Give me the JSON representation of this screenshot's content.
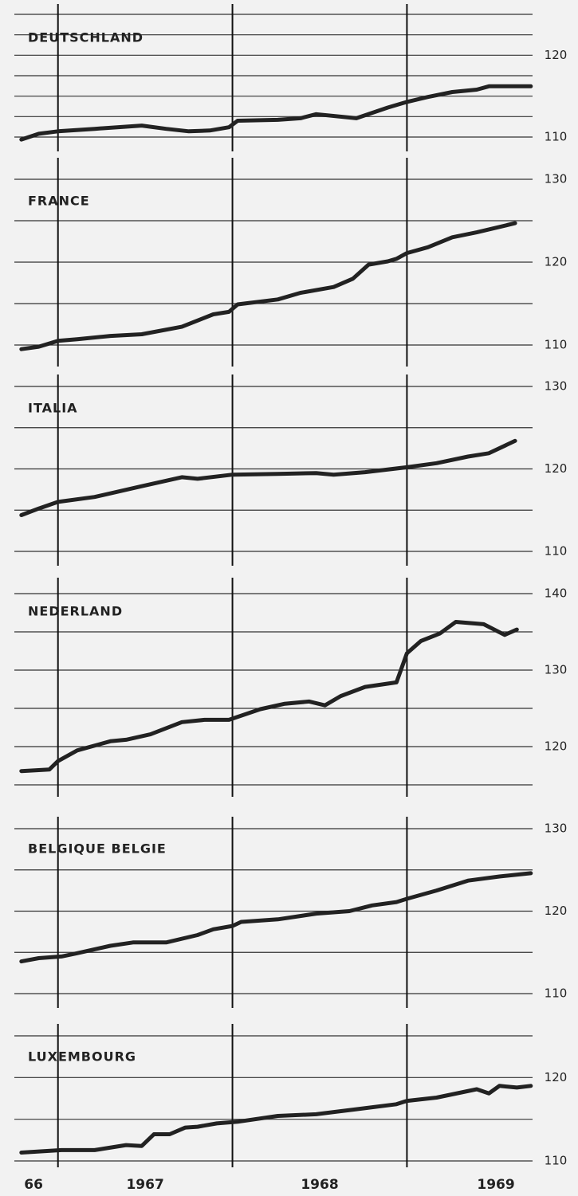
{
  "chart_data": [
    {
      "type": "line",
      "title": "DEUTSCHLAND",
      "color": "#222222",
      "x": [
        1966.79,
        1966.89,
        1967.0,
        1967.21,
        1967.48,
        1967.62,
        1967.75,
        1967.87,
        1967.98,
        1968.03,
        1968.26,
        1968.39,
        1968.48,
        1968.71,
        1968.89,
        1969.0,
        1969.12,
        1969.26,
        1969.4,
        1969.47,
        1969.71
      ],
      "values": [
        109.7,
        110.4,
        110.7,
        111.0,
        111.4,
        111.0,
        110.7,
        110.8,
        111.2,
        112.0,
        112.1,
        112.3,
        112.8,
        112.3,
        113.6,
        114.3,
        114.9,
        115.5,
        115.8,
        116.2,
        116.2
      ],
      "xlim": [
        1966.75,
        1969.72
      ],
      "xticks": [
        1967,
        1968,
        1969
      ],
      "ylim": [
        110,
        125
      ],
      "yticks": [
        110,
        120
      ],
      "ygrid": [
        110,
        112.5,
        115,
        117.5,
        120,
        122.5,
        125
      ]
    },
    {
      "type": "line",
      "title": "FRANCE",
      "color": "#222222",
      "x": [
        1966.79,
        1966.89,
        1967.0,
        1967.11,
        1967.3,
        1967.48,
        1967.71,
        1967.89,
        1967.98,
        1968.03,
        1968.26,
        1968.39,
        1968.58,
        1968.69,
        1968.78,
        1968.89,
        1968.94,
        1969.0,
        1969.12,
        1969.26,
        1969.4,
        1969.62
      ],
      "values": [
        109.5,
        109.8,
        110.5,
        110.7,
        111.1,
        111.3,
        112.2,
        113.7,
        114.0,
        114.9,
        115.5,
        116.3,
        117.0,
        118.0,
        119.7,
        120.1,
        120.4,
        121.1,
        121.8,
        123.0,
        123.6,
        124.7
      ],
      "xlim": [
        1966.75,
        1969.72
      ],
      "xticks": [
        1967,
        1968,
        1969
      ],
      "ylim": [
        110,
        130
      ],
      "yticks": [
        110,
        120,
        130
      ],
      "ygrid": [
        110,
        115,
        120,
        125,
        130
      ]
    },
    {
      "type": "line",
      "title": "ITALIA",
      "color": "#222222",
      "x": [
        1966.79,
        1966.89,
        1967.0,
        1967.21,
        1967.48,
        1967.71,
        1967.8,
        1968.0,
        1968.26,
        1968.48,
        1968.58,
        1968.76,
        1969.0,
        1969.17,
        1969.35,
        1969.47,
        1969.62
      ],
      "values": [
        114.4,
        115.2,
        116.0,
        116.6,
        117.9,
        119.0,
        118.8,
        119.3,
        119.4,
        119.5,
        119.3,
        119.6,
        120.2,
        120.7,
        121.5,
        121.9,
        123.4
      ],
      "xlim": [
        1966.75,
        1969.72
      ],
      "xticks": [
        1967,
        1968,
        1969
      ],
      "ylim": [
        110,
        130
      ],
      "yticks": [
        110,
        120,
        130
      ],
      "ygrid": [
        110,
        115,
        120,
        125,
        130
      ]
    },
    {
      "type": "line",
      "title": "NEDERLAND",
      "color": "#222222",
      "x": [
        1966.79,
        1966.95,
        1967.0,
        1967.11,
        1967.3,
        1967.39,
        1967.53,
        1967.71,
        1967.84,
        1967.98,
        1968.16,
        1968.3,
        1968.44,
        1968.53,
        1968.62,
        1968.76,
        1968.94,
        1969.0,
        1969.08,
        1969.19,
        1969.28,
        1969.44,
        1969.56,
        1969.63
      ],
      "values": [
        116.8,
        117.0,
        118.1,
        119.5,
        120.7,
        120.9,
        121.6,
        123.2,
        123.5,
        123.5,
        124.9,
        125.6,
        125.9,
        125.4,
        126.6,
        127.8,
        128.4,
        132.2,
        133.8,
        134.8,
        136.3,
        136.0,
        134.6,
        135.3
      ],
      "xlim": [
        1966.75,
        1969.72
      ],
      "xticks": [
        1967,
        1968,
        1969
      ],
      "ylim": [
        115,
        140
      ],
      "yticks": [
        120,
        130,
        140
      ],
      "ygrid": [
        115,
        120,
        125,
        130,
        135,
        140
      ]
    },
    {
      "type": "line",
      "title": "BELGIQUE BELGIE",
      "color": "#222222",
      "x": [
        1966.79,
        1966.89,
        1967.02,
        1967.11,
        1967.3,
        1967.43,
        1967.62,
        1967.8,
        1967.89,
        1968.0,
        1968.05,
        1968.26,
        1968.48,
        1968.67,
        1968.8,
        1968.94,
        1969.0,
        1969.17,
        1969.35,
        1969.53,
        1969.71
      ],
      "values": [
        113.9,
        114.3,
        114.5,
        114.9,
        115.8,
        116.2,
        116.2,
        117.1,
        117.8,
        118.2,
        118.7,
        119.0,
        119.7,
        120.0,
        120.7,
        121.1,
        121.5,
        122.5,
        123.7,
        124.2,
        124.6
      ],
      "xlim": [
        1966.75,
        1969.72
      ],
      "xticks": [
        1967,
        1968,
        1969
      ],
      "ylim": [
        110,
        130
      ],
      "yticks": [
        110,
        120,
        130
      ],
      "ygrid": [
        110,
        115,
        120,
        125,
        130
      ]
    },
    {
      "type": "line",
      "title": "LUXEMBOURG",
      "color": "#222222",
      "x": [
        1966.79,
        1967.02,
        1967.21,
        1967.39,
        1967.48,
        1967.55,
        1967.64,
        1967.73,
        1967.8,
        1967.91,
        1968.03,
        1968.26,
        1968.48,
        1968.71,
        1968.94,
        1969.0,
        1969.17,
        1969.4,
        1969.47,
        1969.53,
        1969.63,
        1969.71
      ],
      "values": [
        111.0,
        111.3,
        111.3,
        111.9,
        111.8,
        113.2,
        113.2,
        114.0,
        114.1,
        114.5,
        114.7,
        115.4,
        115.6,
        116.2,
        116.8,
        117.2,
        117.6,
        118.6,
        118.1,
        119.0,
        118.8,
        119.0
      ],
      "xlim": [
        1966.75,
        1969.72
      ],
      "xticks": [
        1967,
        1968,
        1969
      ],
      "ylim": [
        110,
        125
      ],
      "yticks": [
        110,
        120
      ],
      "ygrid": [
        110,
        115,
        120,
        125
      ],
      "x_labels": [
        {
          "value": 1966.86,
          "label": "66"
        },
        {
          "value": 1967.5,
          "label": "1967"
        },
        {
          "value": 1968.5,
          "label": "1968"
        },
        {
          "value": 1969.51,
          "label": "1969"
        }
      ]
    }
  ]
}
